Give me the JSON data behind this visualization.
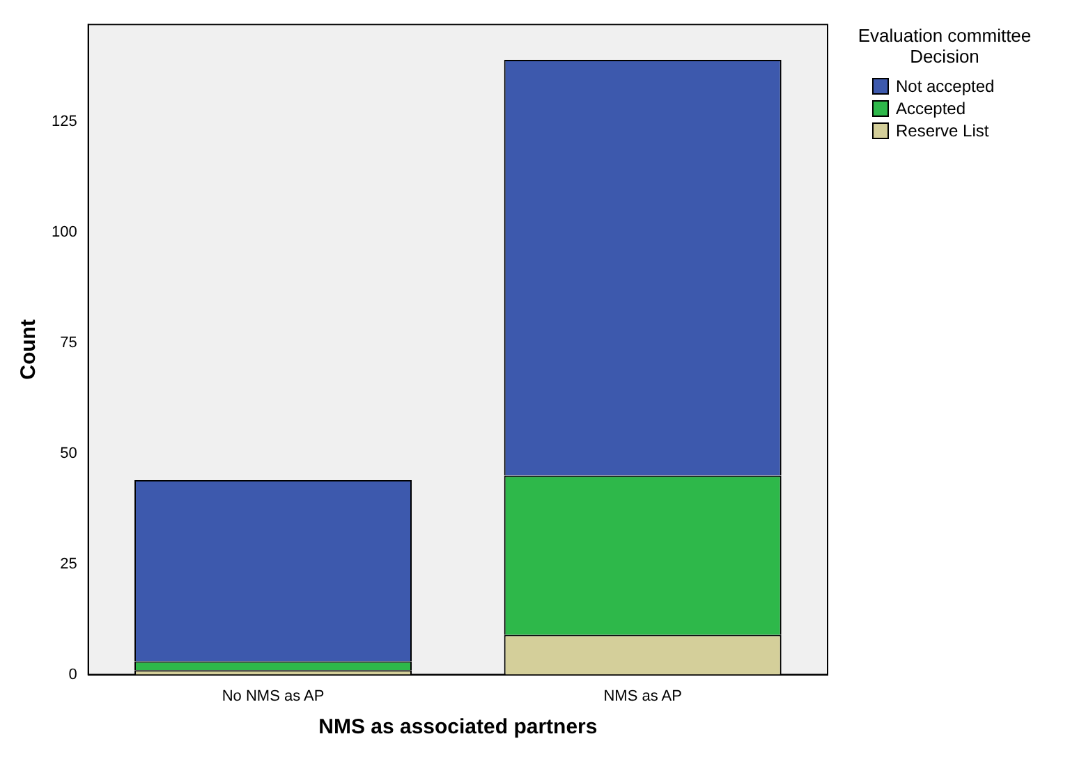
{
  "chart_data": {
    "type": "bar",
    "stacked": true,
    "xlabel": "NMS as associated partners",
    "ylabel": "Count",
    "legend_title": "Evaluation committee Decision",
    "legend": "top right",
    "grid": false,
    "categories": [
      "No NMS as AP",
      "NMS as AP"
    ],
    "series": [
      {
        "name": "Reserve List",
        "color": "#d4cf9a",
        "values": [
          1,
          9
        ]
      },
      {
        "name": "Accepted",
        "color": "#2eb84a",
        "values": [
          2,
          36
        ]
      },
      {
        "name": "Not accepted",
        "color": "#3d59ad",
        "values": [
          41,
          94
        ]
      }
    ],
    "ylim": [
      0,
      147
    ],
    "yticks": [
      0,
      25,
      50,
      75,
      100,
      125
    ]
  }
}
